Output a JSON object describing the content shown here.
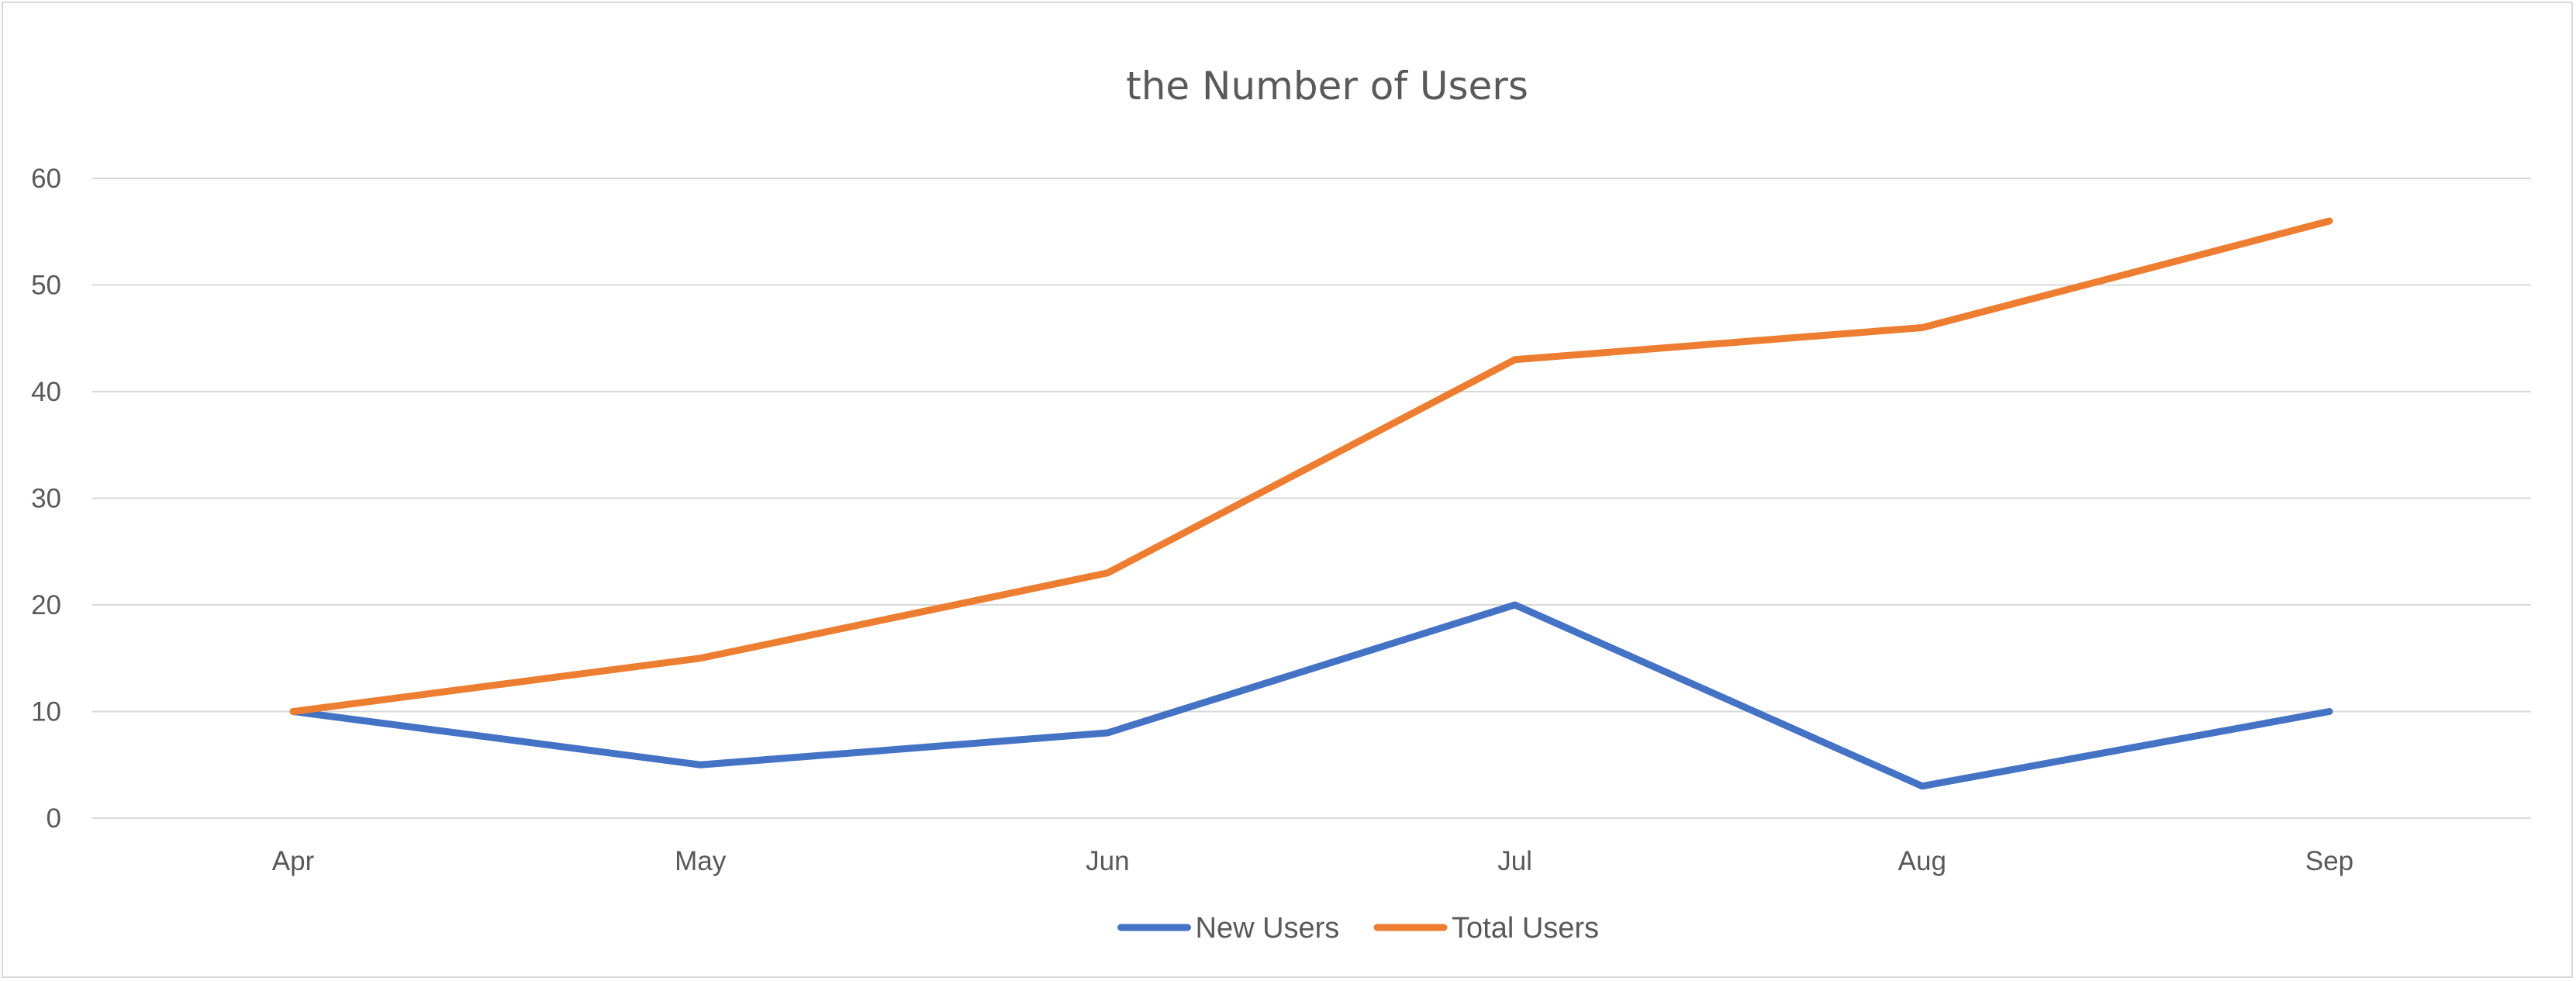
{
  "chart_data": {
    "type": "line",
    "title": "the Number of Users",
    "xlabel": "",
    "ylabel": "",
    "categories": [
      "Apr",
      "May",
      "Jun",
      "Jul",
      "Aug",
      "Sep"
    ],
    "series": [
      {
        "name": "New Users",
        "values": [
          10,
          5,
          8,
          20,
          3,
          10
        ],
        "color": "#4472C4"
      },
      {
        "name": "Total Users",
        "values": [
          10,
          15,
          23,
          43,
          46,
          56
        ],
        "color": "#ED7D31"
      }
    ],
    "ylim": [
      0,
      60
    ],
    "yticks": [
      0,
      10,
      20,
      30,
      40,
      50,
      60
    ],
    "grid": true,
    "legend": "bottom-center",
    "colors": {
      "gridline": "#d9d9d9",
      "axis_text": "#595959",
      "border": "#d9d9d9"
    }
  }
}
